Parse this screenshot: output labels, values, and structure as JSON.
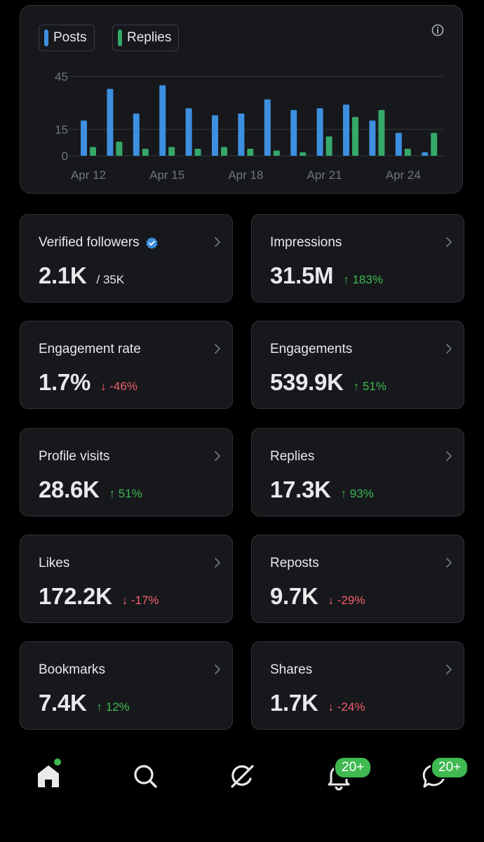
{
  "chart": {
    "legend": {
      "posts_label": "Posts",
      "replies_label": "Replies"
    },
    "info_icon": "info-icon",
    "colors": {
      "posts": "#3d8fe0",
      "replies": "#36a86a"
    }
  },
  "chart_data": {
    "type": "bar",
    "categories": [
      "Apr 12",
      "Apr 13",
      "Apr 14",
      "Apr 15",
      "Apr 16",
      "Apr 17",
      "Apr 18",
      "Apr 19",
      "Apr 20",
      "Apr 21",
      "Apr 22",
      "Apr 23",
      "Apr 24",
      "Apr 25"
    ],
    "x_tick_labels": [
      "Apr 12",
      "Apr 15",
      "Apr 18",
      "Apr 21",
      "Apr 24"
    ],
    "y_ticks": [
      0,
      15,
      45
    ],
    "ylim": [
      0,
      45
    ],
    "grid": true,
    "legend_position": "top-left",
    "series": [
      {
        "name": "Posts",
        "values": [
          20,
          38,
          24,
          40,
          27,
          23,
          24,
          32,
          26,
          27,
          29,
          20,
          13,
          2
        ]
      },
      {
        "name": "Replies",
        "values": [
          5,
          8,
          4,
          5,
          4,
          5,
          4,
          3,
          2,
          11,
          22,
          26,
          4,
          13
        ]
      }
    ],
    "title": "",
    "xlabel": "",
    "ylabel": ""
  },
  "stats": [
    {
      "label": "Verified followers",
      "value": "2.1K",
      "sub": "/ 35K",
      "verified": true
    },
    {
      "label": "Impressions",
      "value": "31.5M",
      "change": "183%",
      "direction": "up"
    },
    {
      "label": "Engagement rate",
      "value": "1.7%",
      "change": "-46%",
      "direction": "down"
    },
    {
      "label": "Engagements",
      "value": "539.9K",
      "change": "51%",
      "direction": "up"
    },
    {
      "label": "Profile visits",
      "value": "28.6K",
      "change": "51%",
      "direction": "up"
    },
    {
      "label": "Replies",
      "value": "17.3K",
      "change": "93%",
      "direction": "up"
    },
    {
      "label": "Likes",
      "value": "172.2K",
      "change": "-17%",
      "direction": "down"
    },
    {
      "label": "Reposts",
      "value": "9.7K",
      "change": "-29%",
      "direction": "down"
    },
    {
      "label": "Bookmarks",
      "value": "7.4K",
      "change": "12%",
      "direction": "up"
    },
    {
      "label": "Shares",
      "value": "1.7K",
      "change": "-24%",
      "direction": "down"
    }
  ],
  "arrows": {
    "up": "↑",
    "down": "↓"
  },
  "nav": {
    "items": [
      "home-icon",
      "search-icon",
      "grok-icon",
      "notifications-icon",
      "messages-icon"
    ],
    "notifications_badge": "20+",
    "messages_badge": "20+"
  }
}
